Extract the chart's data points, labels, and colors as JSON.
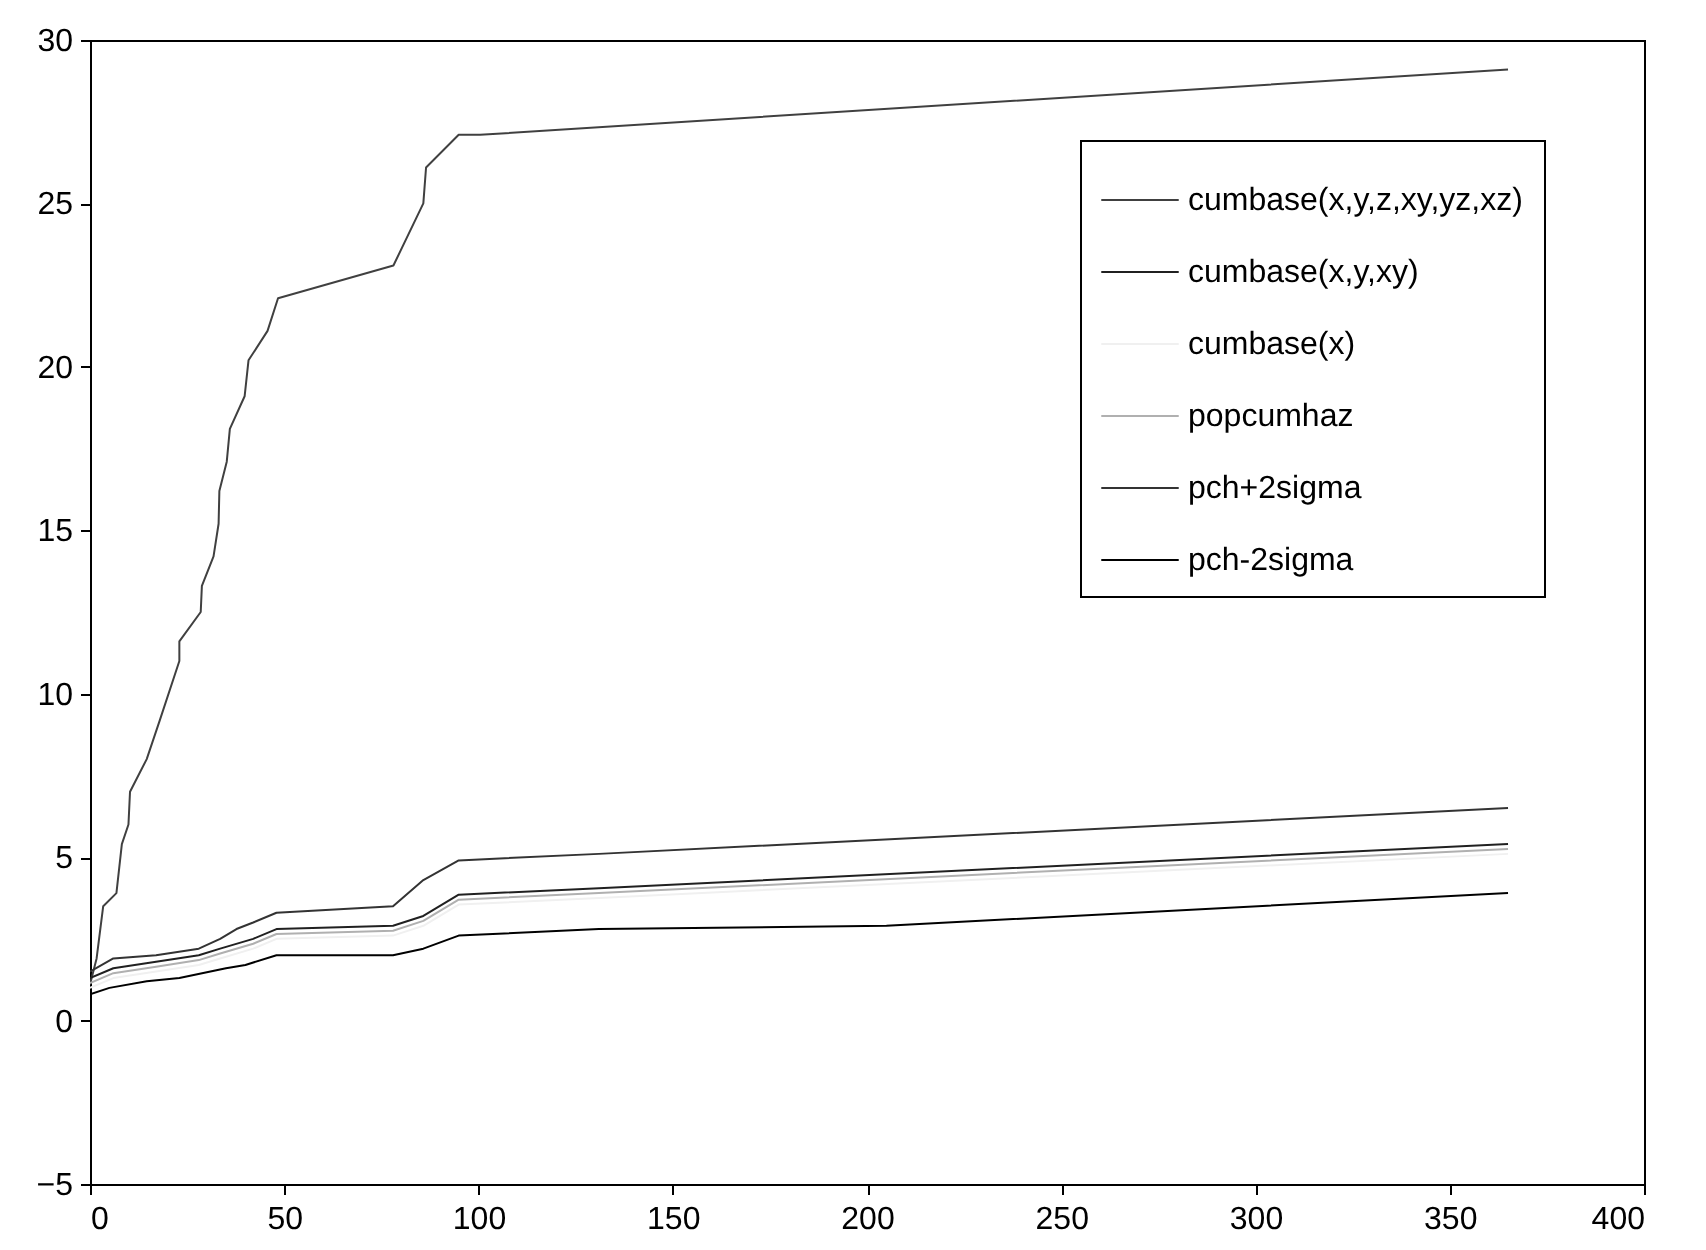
{
  "chart_data": {
    "type": "line",
    "xlim": [
      0,
      400
    ],
    "ylim": [
      -5,
      30
    ],
    "xticks": [
      0,
      50,
      100,
      150,
      200,
      250,
      300,
      350,
      400
    ],
    "yticks": [
      -5,
      0,
      5,
      10,
      15,
      20,
      25,
      30
    ],
    "grid": false,
    "legend": "top right",
    "line_style": "solid",
    "marker": "none",
    "series": [
      {
        "name": "cumbase(x,y,z,xy,yz,xz)",
        "color": "#404040",
        "x": [
          0,
          1.7,
          3.4,
          6.8,
          8.2,
          9.9,
          10.3,
          14.6,
          18,
          23,
          23,
          28.5,
          28.8,
          31.8,
          33.1,
          33.3,
          35.2,
          36,
          39.8,
          40.8,
          45.7,
          48.4,
          78.1,
          85.8,
          86.5,
          94.9,
          100.4,
          365
        ],
        "values": [
          1.1,
          1.9,
          3.5,
          3.9,
          5.4,
          6,
          7,
          8,
          9.2,
          11,
          11.6,
          12.5,
          13.3,
          14.2,
          15.2,
          16.2,
          17.1,
          18.1,
          19.1,
          20.2,
          21.1,
          22.1,
          23.1,
          25,
          26.1,
          27.1,
          27.1,
          29.1
        ]
      },
      {
        "name": "cumbase(x,y,xy)",
        "color": "#202020",
        "x": [
          0,
          6,
          17,
          28,
          33.5,
          42,
          48,
          78,
          85.8,
          94.9,
          131,
          365
        ],
        "values": [
          1.3,
          1.6,
          1.8,
          2,
          2.2,
          2.5,
          2.8,
          2.9,
          3.2,
          3.85,
          4.05,
          5.4
        ]
      },
      {
        "name": "cumbase(x)",
        "color": "#f0f0f0",
        "x": [
          0,
          6,
          17,
          28,
          33.5,
          42,
          48,
          78,
          85.8,
          94.9,
          131,
          365
        ],
        "values": [
          1,
          1.3,
          1.5,
          1.7,
          1.9,
          2.2,
          2.5,
          2.6,
          2.9,
          3.55,
          3.75,
          5.1
        ]
      },
      {
        "name": "popcumhaz",
        "color": "#b0b0b0",
        "x": [
          0,
          6,
          17,
          28,
          33.5,
          42,
          48,
          78,
          85.8,
          94.9,
          131,
          365
        ],
        "values": [
          1.15,
          1.45,
          1.65,
          1.85,
          2.05,
          2.35,
          2.65,
          2.75,
          3.05,
          3.7,
          3.9,
          5.25
        ]
      },
      {
        "name": "pch+2sigma",
        "color": "#333333",
        "x": [
          0,
          6,
          17,
          28,
          33.5,
          37.7,
          42,
          48,
          78,
          85.8,
          94.9,
          131,
          365
        ],
        "values": [
          1.5,
          1.9,
          2,
          2.2,
          2.5,
          2.8,
          3,
          3.3,
          3.5,
          4.3,
          4.9,
          5.1,
          6.5
        ]
      },
      {
        "name": "pch-2sigma",
        "color": "#000000",
        "x": [
          0,
          5,
          14.6,
          23,
          35,
          40,
          48,
          78,
          85.8,
          94.9,
          131,
          205,
          365
        ],
        "values": [
          0.8,
          1,
          1.2,
          1.3,
          1.6,
          1.7,
          2,
          2,
          2.2,
          2.6,
          2.8,
          2.9,
          3.9
        ]
      }
    ]
  }
}
